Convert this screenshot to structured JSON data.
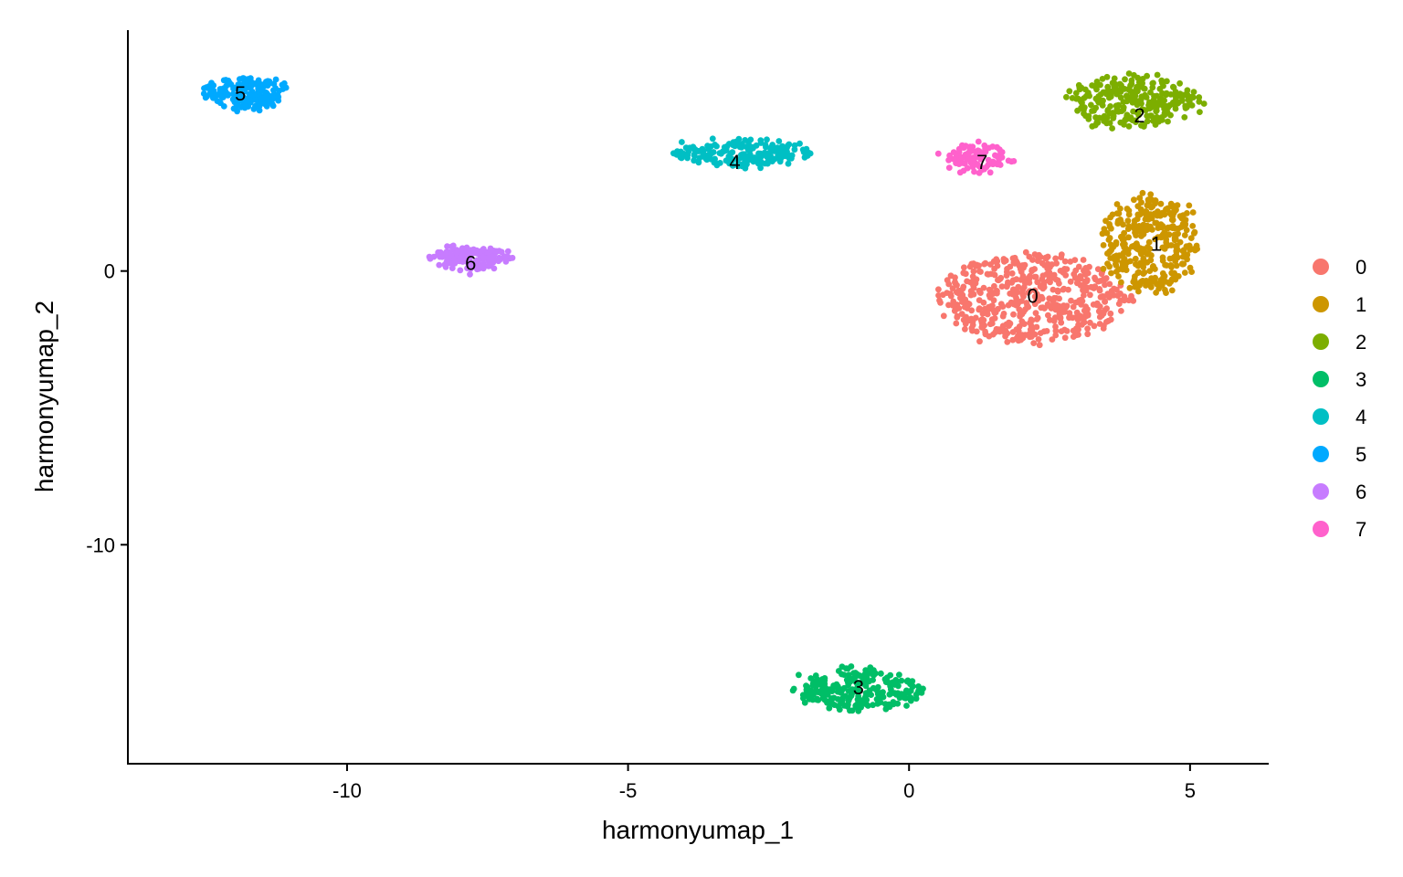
{
  "chart_data": {
    "type": "scatter",
    "xlabel": "harmonyumap_1",
    "ylabel": "harmonyumap_2",
    "xlim": [
      -13.9,
      6.4
    ],
    "ylim": [
      -18.0,
      8.8
    ],
    "xticks": [
      -10,
      -5,
      0,
      5
    ],
    "yticks": [
      -10,
      0
    ],
    "grid": false,
    "legend": {
      "title": "",
      "position": "right"
    },
    "series": [
      {
        "name": "0",
        "color": "#F8766D",
        "center": [
          2.2,
          -1.0
        ],
        "spread": [
          1.7,
          1.6
        ],
        "n": 520,
        "label_at": [
          2.2,
          -0.9
        ]
      },
      {
        "name": "1",
        "color": "#CD9600",
        "center": [
          4.3,
          1.0
        ],
        "spread": [
          0.85,
          1.75
        ],
        "n": 330,
        "label_at": [
          4.4,
          1.0
        ]
      },
      {
        "name": "2",
        "color": "#7CAE00",
        "center": [
          4.0,
          6.2
        ],
        "spread": [
          1.2,
          0.9
        ],
        "n": 260,
        "label_at": [
          4.1,
          5.7
        ]
      },
      {
        "name": "3",
        "color": "#00BE67",
        "center": [
          -0.9,
          -15.3
        ],
        "spread": [
          1.1,
          0.75
        ],
        "n": 240,
        "label_at": [
          -0.9,
          -15.2
        ]
      },
      {
        "name": "4",
        "color": "#00BFC4",
        "center": [
          -3.0,
          4.3
        ],
        "spread": [
          1.2,
          0.45
        ],
        "n": 200,
        "label_at": [
          -3.1,
          4.0
        ]
      },
      {
        "name": "5",
        "color": "#00A9FF",
        "center": [
          -11.8,
          6.5
        ],
        "spread": [
          0.75,
          0.55
        ],
        "n": 190,
        "label_at": [
          -11.9,
          6.5
        ]
      },
      {
        "name": "6",
        "color": "#C77CFF",
        "center": [
          -7.8,
          0.5
        ],
        "spread": [
          0.7,
          0.4
        ],
        "n": 160,
        "label_at": [
          -7.8,
          0.3
        ]
      },
      {
        "name": "7",
        "color": "#FF61CC",
        "center": [
          1.2,
          4.1
        ],
        "spread": [
          0.6,
          0.5
        ],
        "n": 90,
        "label_at": [
          1.3,
          4.0
        ]
      }
    ]
  }
}
